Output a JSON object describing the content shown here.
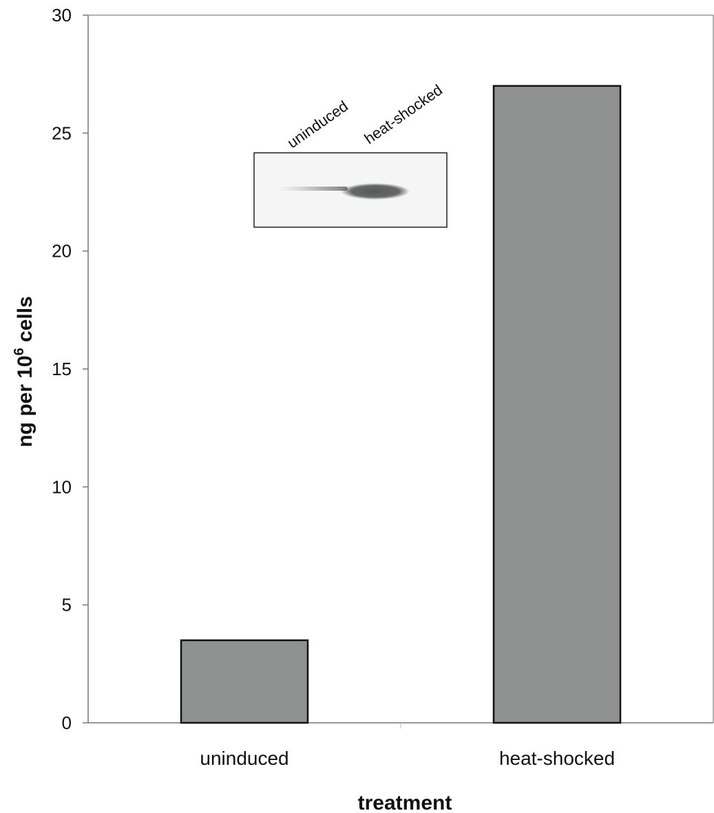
{
  "chart_data": {
    "type": "bar",
    "categories": [
      "uninduced",
      "heat-shocked"
    ],
    "values": [
      3.5,
      27
    ],
    "title": "",
    "xlabel": "treatment",
    "ylabel": {
      "prefix": "ng per 10",
      "superscript": "6",
      "suffix": " cells"
    },
    "ylim": [
      0,
      30
    ],
    "yticks": [
      0,
      5,
      10,
      15,
      20,
      25,
      30
    ],
    "grid": false,
    "legend": "none",
    "bar_color": "#8e9190",
    "bar_edge_color": "#111111",
    "inset": {
      "type": "gel-blot",
      "lane_labels": [
        "uninduced",
        "heat-shocked"
      ],
      "band_color": "#555a58"
    }
  }
}
